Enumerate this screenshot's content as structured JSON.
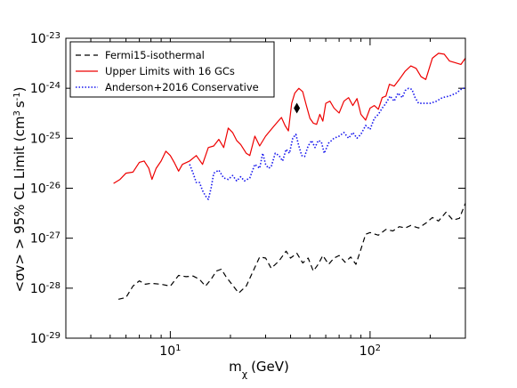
{
  "chart_data": {
    "type": "line",
    "xscale": "log",
    "yscale": "log",
    "xlim": [
      3.0,
      300.0
    ],
    "ylim": [
      1e-29,
      1e-23
    ],
    "xlabel": "m_χ (GeV)",
    "ylabel": "<σv> > 95% CL Limit (cm³ s⁻¹)",
    "xticks": [
      {
        "value": 10,
        "base": "10",
        "exp": "1"
      },
      {
        "value": 100,
        "base": "10",
        "exp": "2"
      }
    ],
    "yticks": [
      {
        "value": 1e-29,
        "base": "10",
        "exp": "-29"
      },
      {
        "value": 1e-28,
        "base": "10",
        "exp": "-28"
      },
      {
        "value": 1e-27,
        "base": "10",
        "exp": "-27"
      },
      {
        "value": 1e-26,
        "base": "10",
        "exp": "-26"
      },
      {
        "value": 1e-25,
        "base": "10",
        "exp": "-25"
      },
      {
        "value": 1e-24,
        "base": "10",
        "exp": "-24"
      },
      {
        "value": 1e-23,
        "base": "10",
        "exp": "-23"
      }
    ],
    "legend_position": "top-left",
    "series": [
      {
        "name": "Fermi15-isothermal",
        "color": "#000000",
        "style": "dashed",
        "points": [
          [
            5.5,
            6e-29
          ],
          [
            6.0,
            6.5e-29
          ],
          [
            6.5,
            1.1e-28
          ],
          [
            7.0,
            1.4e-28
          ],
          [
            7.5,
            1.2e-28
          ],
          [
            8.0,
            1.25e-28
          ],
          [
            9.0,
            1.2e-28
          ],
          [
            10.0,
            1.1e-28
          ],
          [
            11.0,
            1.8e-28
          ],
          [
            12.0,
            1.7e-28
          ],
          [
            13.0,
            1.75e-28
          ],
          [
            14.0,
            1.5e-28
          ],
          [
            15.0,
            1.1e-28
          ],
          [
            16.0,
            1.5e-28
          ],
          [
            17.0,
            2.2e-28
          ],
          [
            18.0,
            2.4e-28
          ],
          [
            19.0,
            1.7e-28
          ],
          [
            20.0,
            1.3e-28
          ],
          [
            22.0,
            8e-29
          ],
          [
            24.0,
            1.1e-28
          ],
          [
            26.0,
            2.2e-28
          ],
          [
            28.0,
            4.2e-28
          ],
          [
            30.0,
            4e-28
          ],
          [
            32.0,
            2.5e-28
          ],
          [
            35.0,
            3.5e-28
          ],
          [
            38.0,
            5.5e-28
          ],
          [
            40.0,
            4e-28
          ],
          [
            43.0,
            5e-28
          ],
          [
            46.0,
            3.2e-28
          ],
          [
            49.0,
            4e-28
          ],
          [
            52.0,
            2.2e-28
          ],
          [
            55.0,
            3e-28
          ],
          [
            58.0,
            4.5e-28
          ],
          [
            62.0,
            3e-28
          ],
          [
            66.0,
            4e-28
          ],
          [
            70.0,
            4.5e-28
          ],
          [
            75.0,
            3.3e-28
          ],
          [
            80.0,
            4.2e-28
          ],
          [
            85.0,
            3e-28
          ],
          [
            90.0,
            6e-28
          ],
          [
            95.0,
            1.2e-27
          ],
          [
            100.0,
            1.3e-27
          ],
          [
            110.0,
            1.15e-27
          ],
          [
            120.0,
            1.5e-27
          ],
          [
            130.0,
            1.4e-27
          ],
          [
            140.0,
            1.7e-27
          ],
          [
            150.0,
            1.6e-27
          ],
          [
            160.0,
            1.8e-27
          ],
          [
            175.0,
            1.6e-27
          ],
          [
            190.0,
            2e-27
          ],
          [
            205.0,
            2.6e-27
          ],
          [
            220.0,
            2.2e-27
          ],
          [
            240.0,
            3.3e-27
          ],
          [
            260.0,
            2.3e-27
          ],
          [
            280.0,
            2.5e-27
          ],
          [
            300.0,
            5e-27
          ]
        ]
      },
      {
        "name": "Upper Limits with 16 GCs",
        "color": "#ee0000",
        "style": "solid",
        "points": [
          [
            5.2,
            1.25e-26
          ],
          [
            5.6,
            1.5e-26
          ],
          [
            6.0,
            2e-26
          ],
          [
            6.5,
            2.1e-26
          ],
          [
            7.0,
            3.3e-26
          ],
          [
            7.4,
            3.5e-26
          ],
          [
            7.8,
            2.5e-26
          ],
          [
            8.1,
            1.5e-26
          ],
          [
            8.5,
            2.5e-26
          ],
          [
            9.0,
            3.5e-26
          ],
          [
            9.5,
            5.5e-26
          ],
          [
            10.0,
            4.5e-26
          ],
          [
            10.5,
            3.2e-26
          ],
          [
            11.0,
            2.2e-26
          ],
          [
            11.5,
            3e-26
          ],
          [
            12.5,
            3.5e-26
          ],
          [
            13.5,
            4.5e-26
          ],
          [
            14.5,
            3e-26
          ],
          [
            15.5,
            6.5e-26
          ],
          [
            16.5,
            7e-26
          ],
          [
            17.5,
            9.5e-26
          ],
          [
            18.5,
            6.5e-26
          ],
          [
            19.5,
            1.6e-25
          ],
          [
            20.5,
            1.3e-25
          ],
          [
            21.5,
            9e-26
          ],
          [
            22.5,
            7.5e-26
          ],
          [
            24.0,
            5e-26
          ],
          [
            25.0,
            4.5e-26
          ],
          [
            26.5,
            1.1e-25
          ],
          [
            28.0,
            7e-26
          ],
          [
            30.0,
            1.1e-25
          ],
          [
            32.0,
            1.5e-25
          ],
          [
            34.0,
            2e-25
          ],
          [
            36.0,
            2.6e-25
          ],
          [
            37.5,
            1.8e-25
          ],
          [
            39.0,
            1.4e-25
          ],
          [
            40.5,
            5e-25
          ],
          [
            42.0,
            8e-25
          ],
          [
            44.0,
            1e-24
          ],
          [
            46.0,
            8.5e-25
          ],
          [
            48.0,
            4.5e-25
          ],
          [
            50.0,
            2.5e-25
          ],
          [
            52.0,
            2e-25
          ],
          [
            54.0,
            1.9e-25
          ],
          [
            56.0,
            3e-25
          ],
          [
            58.0,
            2.2e-25
          ],
          [
            60.0,
            5e-25
          ],
          [
            63.0,
            5.5e-25
          ],
          [
            66.0,
            4e-25
          ],
          [
            70.0,
            3.2e-25
          ],
          [
            74.0,
            5.5e-25
          ],
          [
            78.0,
            6.5e-25
          ],
          [
            82.0,
            4.5e-25
          ],
          [
            86.0,
            6.2e-25
          ],
          [
            90.0,
            3e-25
          ],
          [
            95.0,
            2.3e-25
          ],
          [
            100.0,
            4e-25
          ],
          [
            105.0,
            4.5e-25
          ],
          [
            110.0,
            3.8e-25
          ],
          [
            115.0,
            6.5e-25
          ],
          [
            120.0,
            7e-25
          ],
          [
            125.0,
            1.2e-24
          ],
          [
            132.0,
            1.1e-24
          ],
          [
            140.0,
            1.5e-24
          ],
          [
            150.0,
            2.2e-24
          ],
          [
            160.0,
            2.8e-24
          ],
          [
            170.0,
            2.5e-24
          ],
          [
            180.0,
            1.7e-24
          ],
          [
            190.0,
            1.5e-24
          ],
          [
            205.0,
            4e-24
          ],
          [
            220.0,
            5e-24
          ],
          [
            235.0,
            4.8e-24
          ],
          [
            250.0,
            3.5e-24
          ],
          [
            270.0,
            3.2e-24
          ],
          [
            285.0,
            3e-24
          ],
          [
            300.0,
            4e-24
          ]
        ]
      },
      {
        "name": "Anderson+2016 Conservative",
        "color": "#1515ee",
        "style": "dotted",
        "points": [
          [
            12.5,
            3e-26
          ],
          [
            13.0,
            2e-26
          ],
          [
            13.5,
            1.3e-26
          ],
          [
            14.0,
            1.3e-26
          ],
          [
            14.5,
            9e-27
          ],
          [
            15.0,
            7e-27
          ],
          [
            15.5,
            6e-27
          ],
          [
            16.0,
            1e-26
          ],
          [
            16.5,
            2e-26
          ],
          [
            17.5,
            2.3e-26
          ],
          [
            18.5,
            1.6e-26
          ],
          [
            19.5,
            1.5e-26
          ],
          [
            20.5,
            1.8e-26
          ],
          [
            21.5,
            1.4e-26
          ],
          [
            22.5,
            1.7e-26
          ],
          [
            23.5,
            1.4e-26
          ],
          [
            25.0,
            1.6e-26
          ],
          [
            26.5,
            3e-26
          ],
          [
            28.0,
            2.5e-26
          ],
          [
            29.0,
            5e-26
          ],
          [
            30.0,
            3e-26
          ],
          [
            31.0,
            2.5e-26
          ],
          [
            32.0,
            2.7e-26
          ],
          [
            33.5,
            5e-26
          ],
          [
            35.0,
            4.5e-26
          ],
          [
            36.5,
            3.5e-26
          ],
          [
            38.0,
            6e-26
          ],
          [
            39.5,
            5e-26
          ],
          [
            41.0,
            1e-25
          ],
          [
            42.5,
            1.2e-25
          ],
          [
            44.0,
            7e-26
          ],
          [
            45.5,
            4.5e-26
          ],
          [
            47.0,
            4.3e-26
          ],
          [
            49.0,
            7e-26
          ],
          [
            51.0,
            9e-26
          ],
          [
            53.0,
            6.5e-26
          ],
          [
            55.0,
            9e-26
          ],
          [
            57.0,
            8.5e-26
          ],
          [
            59.0,
            5e-26
          ],
          [
            62.0,
            8e-26
          ],
          [
            66.0,
            1e-25
          ],
          [
            70.0,
            1.1e-25
          ],
          [
            74.0,
            1.3e-25
          ],
          [
            78.0,
            1e-25
          ],
          [
            82.0,
            1.3e-25
          ],
          [
            86.0,
            1e-25
          ],
          [
            90.0,
            1.2e-25
          ],
          [
            95.0,
            1.8e-25
          ],
          [
            100.0,
            1.5e-25
          ],
          [
            105.0,
            2.5e-25
          ],
          [
            110.0,
            3e-25
          ],
          [
            115.0,
            4e-25
          ],
          [
            120.0,
            5e-25
          ],
          [
            126.0,
            7e-25
          ],
          [
            132.0,
            5.5e-25
          ],
          [
            138.0,
            8e-25
          ],
          [
            145.0,
            6.5e-25
          ],
          [
            150.0,
            9e-25
          ],
          [
            156.0,
            1e-24
          ],
          [
            162.0,
            9.5e-25
          ],
          [
            168.0,
            6.5e-25
          ],
          [
            175.0,
            5e-25
          ],
          [
            185.0,
            5e-25
          ],
          [
            200.0,
            5e-25
          ],
          [
            215.0,
            5.5e-25
          ],
          [
            230.0,
            6.5e-25
          ],
          [
            250.0,
            7e-25
          ],
          [
            270.0,
            8e-25
          ],
          [
            290.0,
            1e-24
          ],
          [
            300.0,
            1e-24
          ]
        ]
      }
    ],
    "markers": [
      {
        "shape": "diamond",
        "color": "#000000",
        "x": 43.0,
        "y": 4e-25
      }
    ]
  }
}
